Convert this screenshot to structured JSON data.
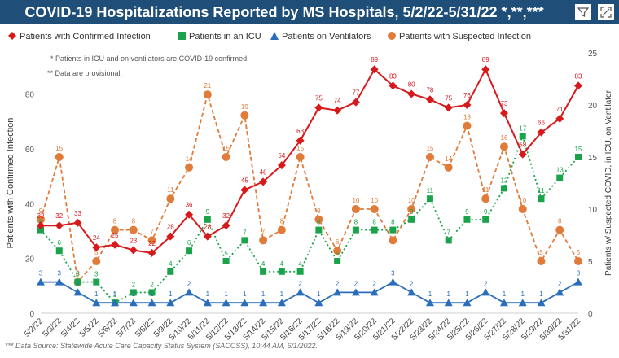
{
  "title": "COVID-19 Hospitalizations Reported by MS Hospitals, 5/2/22-5/31/22 *,**,***",
  "icons": {
    "filter": "filter-icon",
    "focus": "focus-mode-icon"
  },
  "notes": [
    "* Patients in ICU and on ventilators are COVID-19 confirmed.",
    "** Data are provisional."
  ],
  "footnote": "*** Data Source: Statewide Acute Care Capacity Status System (SACCSS), 10:44 AM, 6/1/2022.",
  "colors": {
    "title_bg": "#1f4e79",
    "confirmed": "#d7191c",
    "icu": "#1aa34a",
    "vent": "#2a6ebb",
    "suspected": "#e07b39"
  },
  "chart_data": {
    "type": "line",
    "categories": [
      "5/2/22",
      "5/3/22",
      "5/4/22",
      "5/5/22",
      "5/6/22",
      "5/7/22",
      "5/8/22",
      "5/9/22",
      "5/10/22",
      "5/11/22",
      "5/12/22",
      "5/13/22",
      "5/14/22",
      "5/15/22",
      "5/16/22",
      "5/17/22",
      "5/18/22",
      "5/19/22",
      "5/20/22",
      "5/21/22",
      "5/22/22",
      "5/23/22",
      "5/24/22",
      "5/25/22",
      "5/26/22",
      "5/27/22",
      "5/28/22",
      "5/29/22",
      "5/30/22",
      "5/31/22"
    ],
    "ylabel": "Patients with Confirmed Infection",
    "y2label": "Patients w/ Suspected COVID, in ICU, on Ventilator",
    "ylim": [
      0,
      95
    ],
    "y2lim": [
      0,
      25
    ],
    "yticks": [
      0,
      20,
      40,
      60,
      80
    ],
    "y2ticks": [
      0,
      5,
      10,
      15,
      20,
      25
    ],
    "legend_position": "top",
    "series": [
      {
        "name": "Patients with Confirmed Infection",
        "axis": "left",
        "values": [
          32,
          32,
          33,
          24,
          25,
          23,
          22,
          28,
          36,
          28,
          32,
          45,
          48,
          54,
          63,
          75,
          74,
          77,
          89,
          83,
          80,
          78,
          75,
          76,
          89,
          73,
          58,
          66,
          71,
          83
        ]
      },
      {
        "name": "Patients in an ICU",
        "axis": "right",
        "values": [
          8,
          6,
          3,
          3,
          1,
          2,
          2,
          4,
          6,
          9,
          5,
          7,
          4,
          4,
          4,
          8,
          5,
          8,
          8,
          8,
          9,
          11,
          7,
          9,
          9,
          12,
          17,
          11,
          13,
          15
        ]
      },
      {
        "name": "Patients on Ventilators",
        "axis": "right",
        "values": [
          3,
          3,
          2,
          1,
          1,
          1,
          1,
          1,
          2,
          1,
          1,
          1,
          1,
          1,
          2,
          1,
          2,
          2,
          2,
          3,
          2,
          1,
          1,
          1,
          2,
          1,
          1,
          1,
          2,
          3
        ]
      },
      {
        "name": "Patients with Suspected Infection",
        "axis": "right",
        "values": [
          9,
          15,
          3,
          5,
          8,
          8,
          7,
          11,
          14,
          21,
          15,
          19,
          7,
          8,
          15,
          9,
          6,
          10,
          10,
          7,
          10,
          15,
          14,
          18,
          11,
          16,
          10,
          5,
          8,
          5
        ]
      }
    ]
  }
}
